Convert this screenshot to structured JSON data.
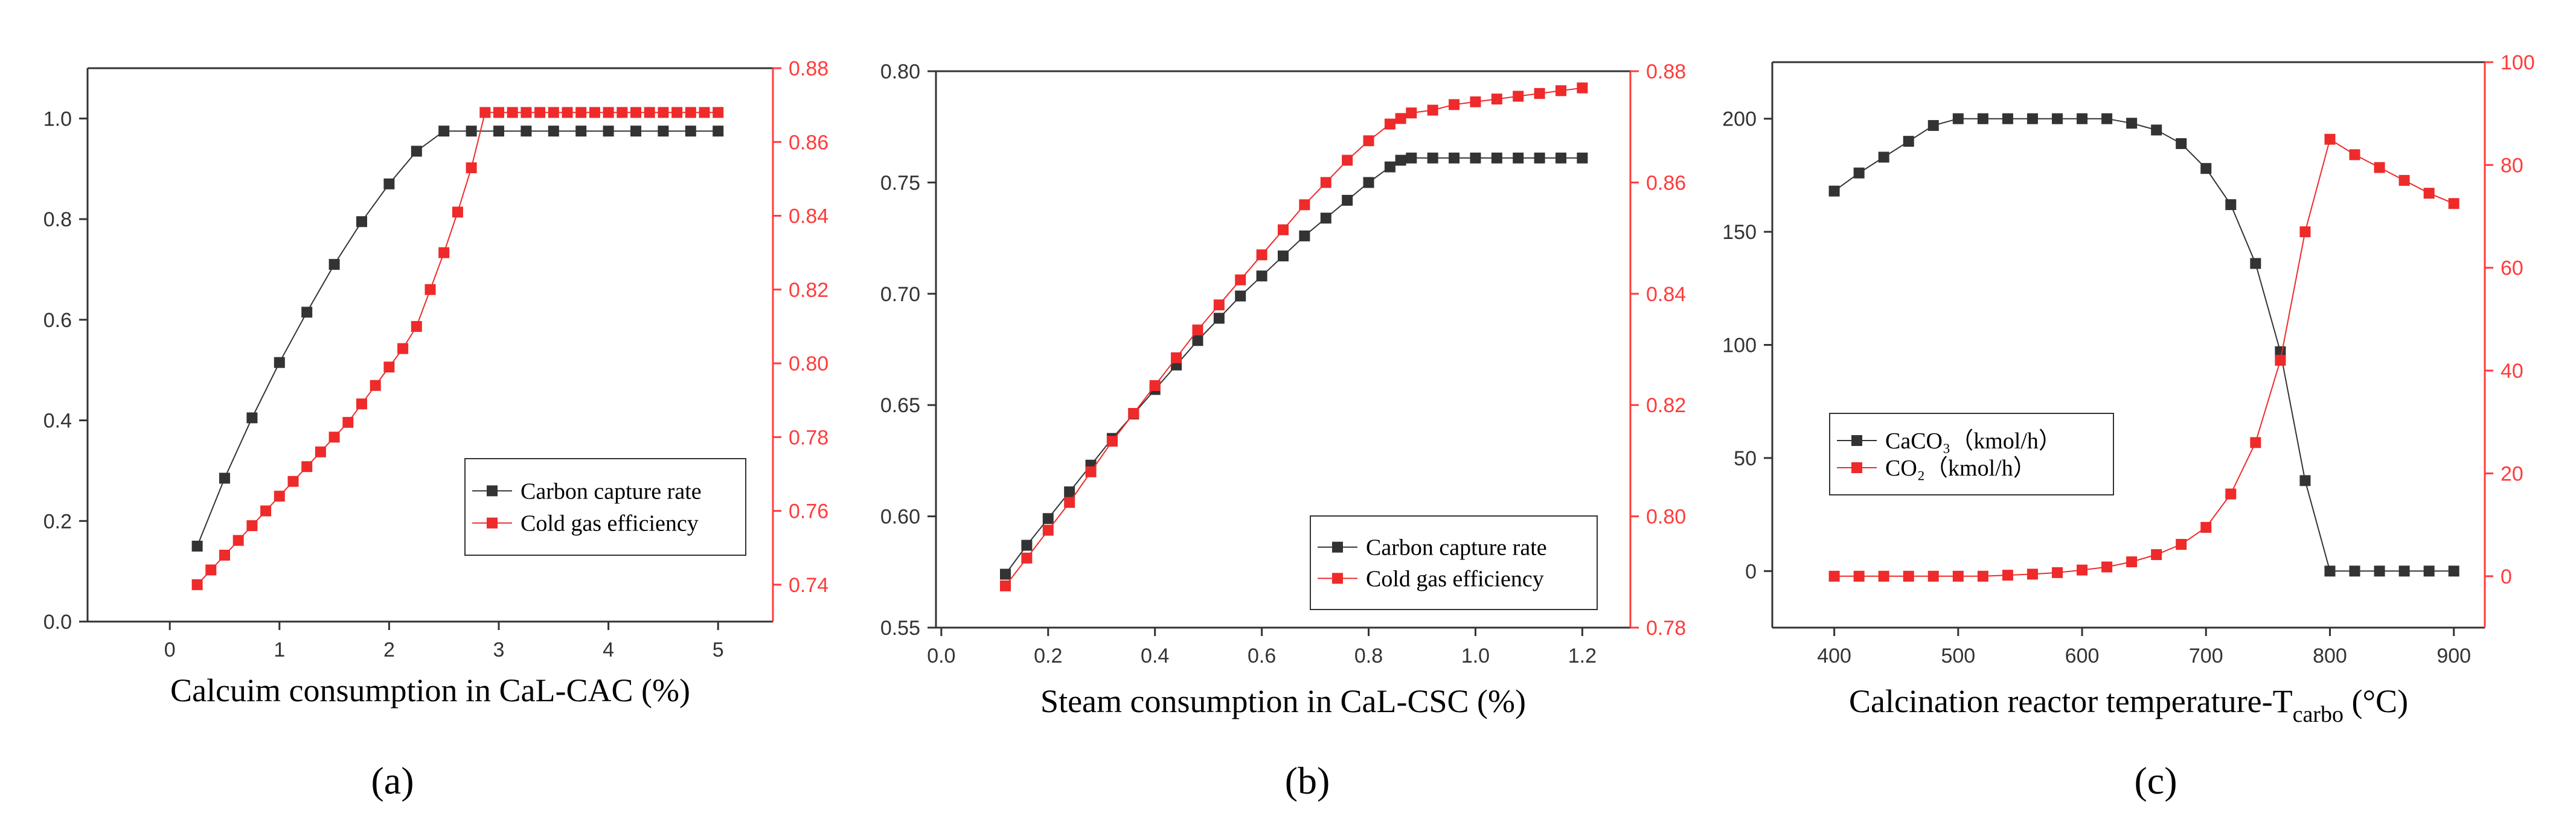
{
  "colors": {
    "series_black": "#333333",
    "series_red": "#ee2a2a",
    "axis": "#333333",
    "axis_red": "#ff3b3b"
  },
  "chart_data": [
    {
      "type": "line",
      "panel": "(a)",
      "xlabel": "Calcuim consumption in CaL-CAC (%)",
      "xlim": [
        -0.75,
        5.5
      ],
      "xticks": [
        "0",
        "1",
        "2",
        "3",
        "4",
        "5"
      ],
      "xtick_values": [
        0,
        1,
        2,
        3,
        4,
        5
      ],
      "ylim_left": [
        0,
        1.1
      ],
      "yticks_left": [
        "0.0",
        "0.2",
        "0.4",
        "0.6",
        "0.8",
        "1.0"
      ],
      "ytick_values_left": [
        0,
        0.2,
        0.4,
        0.6,
        0.8,
        1.0
      ],
      "ylim_right": [
        0.73,
        0.88
      ],
      "yticks_right": [
        "0.74",
        "0.76",
        "0.78",
        "0.80",
        "0.82",
        "0.84",
        "0.86",
        "0.88"
      ],
      "ytick_values_right": [
        0.74,
        0.76,
        0.78,
        0.8,
        0.82,
        0.84,
        0.86,
        0.88
      ],
      "legend_position": "bottom-right",
      "series": [
        {
          "name": "Carbon capture rate",
          "axis": "left",
          "color": "#333333",
          "x": [
            0.25,
            0.5,
            0.75,
            1.0,
            1.25,
            1.5,
            1.75,
            2.0,
            2.25,
            2.5,
            2.75,
            3.0,
            3.25,
            3.5,
            3.75,
            4.0,
            4.25,
            4.5,
            4.75,
            5.0
          ],
          "y": [
            0.15,
            0.285,
            0.405,
            0.515,
            0.615,
            0.71,
            0.795,
            0.87,
            0.935,
            0.975,
            0.975,
            0.975,
            0.975,
            0.975,
            0.975,
            0.975,
            0.975,
            0.975,
            0.975,
            0.975
          ]
        },
        {
          "name": "Cold gas efficiency",
          "axis": "right",
          "color": "#ee2a2a",
          "x": [
            0.25,
            0.375,
            0.5,
            0.625,
            0.75,
            0.875,
            1.0,
            1.125,
            1.25,
            1.375,
            1.5,
            1.625,
            1.75,
            1.875,
            2.0,
            2.125,
            2.25,
            2.375,
            2.5,
            2.625,
            2.75,
            2.875,
            3.0,
            3.125,
            3.25,
            3.375,
            3.5,
            3.625,
            3.75,
            3.875,
            4.0,
            4.125,
            4.25,
            4.375,
            4.5,
            4.625,
            4.75,
            4.875,
            5.0
          ],
          "y": [
            0.74,
            0.744,
            0.748,
            0.752,
            0.756,
            0.76,
            0.764,
            0.768,
            0.772,
            0.776,
            0.78,
            0.784,
            0.789,
            0.794,
            0.799,
            0.804,
            0.81,
            0.82,
            0.83,
            0.841,
            0.853,
            0.868,
            0.868,
            0.868,
            0.868,
            0.868,
            0.868,
            0.868,
            0.868,
            0.868,
            0.868,
            0.868,
            0.868,
            0.868,
            0.868,
            0.868,
            0.868,
            0.868,
            0.868
          ]
        }
      ]
    },
    {
      "type": "line",
      "panel": "(b)",
      "xlabel": "Steam consumption in CaL-CSC (%)",
      "xlim": [
        -0.01,
        1.29
      ],
      "xticks": [
        "0.0",
        "0.2",
        "0.4",
        "0.6",
        "0.8",
        "1.0",
        "1.2"
      ],
      "xtick_values": [
        0,
        0.2,
        0.4,
        0.6,
        0.8,
        1.0,
        1.2
      ],
      "ylim_left": [
        0.55,
        0.8
      ],
      "yticks_left": [
        "0.55",
        "0.60",
        "0.65",
        "0.70",
        "0.75",
        "0.80"
      ],
      "ytick_values_left": [
        0.55,
        0.6,
        0.65,
        0.7,
        0.75,
        0.8
      ],
      "ylim_right": [
        0.78,
        0.88
      ],
      "yticks_right": [
        "0.78",
        "0.80",
        "0.82",
        "0.84",
        "0.86",
        "0.88"
      ],
      "ytick_values_right": [
        0.78,
        0.8,
        0.82,
        0.84,
        0.86,
        0.88
      ],
      "legend_position": "bottom-right",
      "series": [
        {
          "name": "Carbon capture rate",
          "axis": "left",
          "color": "#333333",
          "x": [
            0.12,
            0.16,
            0.2,
            0.24,
            0.28,
            0.32,
            0.36,
            0.4,
            0.44,
            0.48,
            0.52,
            0.56,
            0.6,
            0.64,
            0.68,
            0.72,
            0.76,
            0.8,
            0.84,
            0.86,
            0.88,
            0.92,
            0.96,
            1.0,
            1.04,
            1.08,
            1.12,
            1.16,
            1.2
          ],
          "y": [
            0.574,
            0.587,
            0.599,
            0.611,
            0.623,
            0.635,
            0.646,
            0.657,
            0.668,
            0.679,
            0.689,
            0.699,
            0.708,
            0.717,
            0.726,
            0.734,
            0.742,
            0.75,
            0.757,
            0.76,
            0.761,
            0.761,
            0.761,
            0.761,
            0.761,
            0.761,
            0.761,
            0.761,
            0.761
          ]
        },
        {
          "name": "Cold gas efficiency",
          "axis": "right",
          "color": "#ee2a2a",
          "x": [
            0.12,
            0.16,
            0.2,
            0.24,
            0.28,
            0.32,
            0.36,
            0.4,
            0.44,
            0.48,
            0.52,
            0.56,
            0.6,
            0.64,
            0.68,
            0.72,
            0.76,
            0.8,
            0.84,
            0.86,
            0.88,
            0.92,
            0.96,
            1.0,
            1.04,
            1.08,
            1.12,
            1.16,
            1.2
          ],
          "y": [
            0.7875,
            0.7925,
            0.7975,
            0.8025,
            0.808,
            0.8135,
            0.8185,
            0.8235,
            0.8285,
            0.8335,
            0.838,
            0.8425,
            0.847,
            0.8515,
            0.856,
            0.86,
            0.864,
            0.8675,
            0.8705,
            0.8715,
            0.8725,
            0.873,
            0.874,
            0.8745,
            0.875,
            0.8755,
            0.876,
            0.8765,
            0.877
          ]
        }
      ]
    },
    {
      "type": "line",
      "panel": "(c)",
      "xlabel_main": "Calcination reactor temperature-T",
      "xlabel_sub": "carbo",
      "xlabel_unit": " (°C)",
      "xlim": [
        350,
        925
      ],
      "xticks": [
        "400",
        "500",
        "600",
        "700",
        "800",
        "900"
      ],
      "xtick_values": [
        400,
        500,
        600,
        700,
        800,
        900
      ],
      "ylim_left": [
        -25,
        225
      ],
      "yticks_left": [
        "0",
        "50",
        "100",
        "150",
        "200"
      ],
      "ytick_values_left": [
        0,
        50,
        100,
        150,
        200
      ],
      "ylim_right": [
        -10,
        100
      ],
      "yticks_right": [
        "0",
        "20",
        "40",
        "60",
        "80",
        "100"
      ],
      "ytick_values_right": [
        0,
        20,
        40,
        60,
        80,
        100
      ],
      "legend_position": "center-left",
      "series": [
        {
          "name": "CaCO₃（kmol/h）",
          "axis": "left",
          "color": "#333333",
          "x": [
            400,
            420,
            440,
            460,
            480,
            500,
            520,
            540,
            560,
            580,
            600,
            620,
            640,
            660,
            680,
            700,
            720,
            740,
            760,
            780,
            800,
            820,
            840,
            860,
            880,
            900
          ],
          "y": [
            168,
            176,
            183,
            190,
            197,
            200,
            200,
            200,
            200,
            200,
            200,
            200,
            198,
            195,
            189,
            178,
            162,
            136,
            97,
            40,
            0,
            0,
            0,
            0,
            0,
            0
          ]
        },
        {
          "name": "CO₂（kmol/h）",
          "axis": "right",
          "color": "#ee2a2a",
          "x": [
            400,
            420,
            440,
            460,
            480,
            500,
            520,
            540,
            560,
            580,
            600,
            620,
            640,
            660,
            680,
            700,
            720,
            740,
            760,
            780,
            800,
            820,
            840,
            860,
            880,
            900
          ],
          "y": [
            0,
            0,
            0,
            0,
            0,
            0,
            0,
            0.2,
            0.4,
            0.7,
            1.2,
            1.8,
            2.8,
            4.2,
            6.2,
            9.5,
            16,
            26,
            42,
            67,
            85,
            82,
            79.5,
            77,
            74.5,
            72.5
          ]
        }
      ]
    }
  ]
}
